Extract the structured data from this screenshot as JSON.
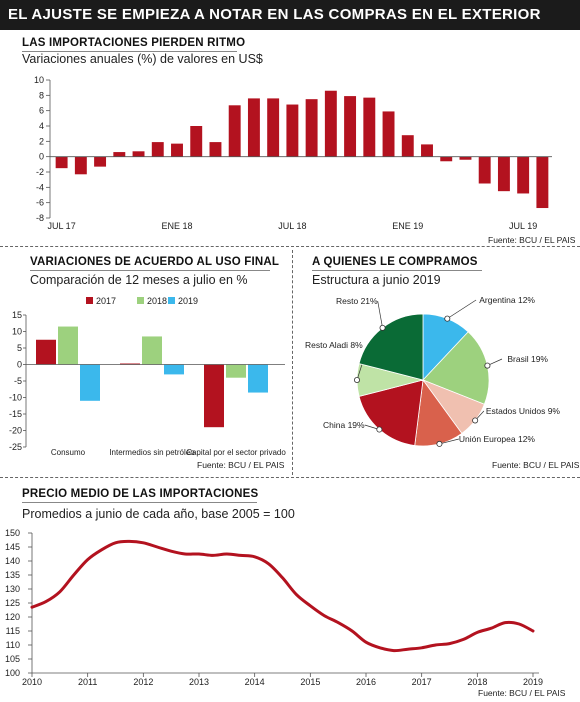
{
  "header": {
    "title": "EL AJUSTE SE EMPIEZA A NOTAR EN LAS COMPRAS EN EL EXTERIOR"
  },
  "chart_data": [
    {
      "type": "bar",
      "title": "LAS IMPORTACIONES PIERDEN RITMO",
      "subtitle": "Variaciones anuales (%) de valores en US$",
      "source": "Fuente: BCU / EL PAIS",
      "color": "#b3121f",
      "ylim": [
        -8,
        10
      ],
      "yticks": [
        -8,
        -6,
        -4,
        -2,
        0,
        2,
        4,
        6,
        8,
        10
      ],
      "x_labels": [
        {
          "label": "JUL 17",
          "index": 0
        },
        {
          "label": "ENE 18",
          "index": 6
        },
        {
          "label": "JUL 18",
          "index": 12
        },
        {
          "label": "ENE 19",
          "index": 18
        },
        {
          "label": "JUL 19",
          "index": 24
        }
      ],
      "values": [
        -1.5,
        -2.3,
        -1.3,
        0.6,
        0.7,
        1.9,
        1.7,
        4.0,
        1.9,
        6.7,
        7.6,
        7.6,
        6.8,
        7.5,
        8.6,
        7.9,
        7.7,
        5.9,
        2.8,
        1.6,
        -0.6,
        -0.4,
        -3.5,
        -4.5,
        -4.8,
        -6.7
      ]
    },
    {
      "type": "bar",
      "title": "VARIACIONES DE ACUERDO AL USO FINAL",
      "subtitle": "Comparación de 12 meses a julio en %",
      "source": "Fuente: BCU / EL PAIS",
      "ylim": [
        -25,
        15
      ],
      "yticks": [
        -25,
        -20,
        -15,
        -10,
        -5,
        0,
        5,
        10,
        15
      ],
      "categories": [
        "Consumo",
        "Intermedios sin petróleo",
        "Capital por el sector privado"
      ],
      "series": [
        {
          "name": "2017",
          "color": "#b3121f",
          "values": [
            7.5,
            0.3,
            -19
          ]
        },
        {
          "name": "2018",
          "color": "#9dd17e",
          "values": [
            11.5,
            8.5,
            -4
          ]
        },
        {
          "name": "2019",
          "color": "#3bb8ec",
          "values": [
            -11,
            -3,
            -8.5
          ]
        }
      ]
    },
    {
      "type": "pie",
      "title": "A QUIENES LE COMPRAMOS",
      "subtitle": "Estructura a junio 2019",
      "source": "Fuente: BCU / EL PAIS",
      "slices": [
        {
          "label": "Argentina 12%",
          "value": 12,
          "color": "#3bb8ec"
        },
        {
          "label": "Brasil 19%",
          "value": 19,
          "color": "#9dd17e"
        },
        {
          "label": "Estados Unidos 9%",
          "value": 9,
          "color": "#f0c0b0"
        },
        {
          "label": "Unión Europea 12%",
          "value": 12,
          "color": "#d9614c"
        },
        {
          "label": "China 19%",
          "value": 19,
          "color": "#b3121f"
        },
        {
          "label": "Resto Aladi 8%",
          "value": 8,
          "color": "#bfe3a6"
        },
        {
          "label": "Resto 21%",
          "value": 21,
          "color": "#0a6b36"
        }
      ]
    },
    {
      "type": "line",
      "title": "PRECIO MEDIO DE LAS IMPORTACIONES",
      "subtitle": "Promedios a junio de cada año, base 2005 = 100",
      "source": "Fuente: BCU / EL PAIS",
      "color": "#b3121f",
      "ylim": [
        100,
        150
      ],
      "yticks": [
        100,
        105,
        110,
        115,
        120,
        125,
        130,
        135,
        140,
        145,
        150
      ],
      "xlim": [
        2010,
        2019
      ],
      "xticks": [
        2010,
        2011,
        2012,
        2013,
        2014,
        2015,
        2016,
        2017,
        2018,
        2019
      ],
      "x": [
        2010.0,
        2010.25,
        2010.5,
        2010.75,
        2011.0,
        2011.25,
        2011.5,
        2011.75,
        2012.0,
        2012.25,
        2012.5,
        2012.75,
        2013.0,
        2013.25,
        2013.5,
        2013.75,
        2014.0,
        2014.25,
        2014.5,
        2014.75,
        2015.0,
        2015.25,
        2015.5,
        2015.75,
        2016.0,
        2016.25,
        2016.5,
        2016.75,
        2017.0,
        2017.25,
        2017.5,
        2017.75,
        2018.0,
        2018.25,
        2018.5,
        2018.75,
        2019.0
      ],
      "y": [
        123.5,
        125.5,
        129,
        135,
        140.5,
        144,
        146.5,
        147,
        146.5,
        145,
        143.5,
        142.5,
        142.5,
        142,
        142.5,
        142,
        141.5,
        139,
        134,
        128,
        124,
        120.5,
        118,
        115,
        111,
        109,
        108,
        108.5,
        109,
        110,
        110.5,
        112,
        114.5,
        116,
        118,
        117.5,
        115
      ]
    }
  ]
}
